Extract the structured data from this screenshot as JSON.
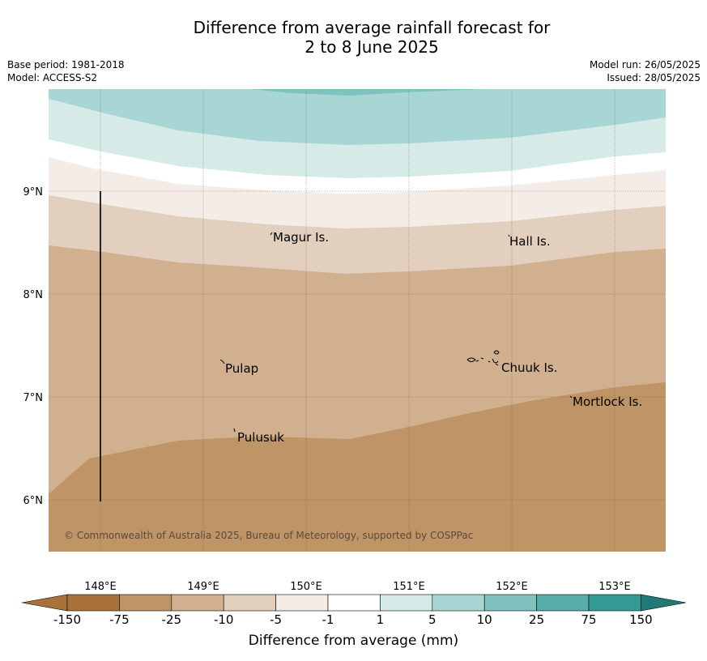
{
  "title_line1": "Difference from average rainfall forecast for",
  "title_line2": "2 to 8 June 2025",
  "base_period": "Base period: 1981-2018",
  "model": "Model: ACCESS-S2",
  "model_run": "Model run: 26/05/2025",
  "issued": "Issued: 28/05/2025",
  "copyright": "© Commonwealth of Australia 2025, Bureau of Meteorology, supported by COSPPac",
  "lat_labels": [
    "9°N",
    "8°N",
    "7°N",
    "6°N"
  ],
  "lon_labels": [
    "148°E",
    "149°E",
    "150°E",
    "151°E",
    "152°E",
    "153°E"
  ],
  "islands": [
    {
      "name": "Magur Is."
    },
    {
      "name": "Hall Is."
    },
    {
      "name": "Pulap"
    },
    {
      "name": "Chuuk Is."
    },
    {
      "name": "Mortlock Is."
    },
    {
      "name": "Pulusuk"
    }
  ],
  "colorbar": {
    "title": "Difference from average (mm)",
    "ticks": [
      "-150",
      "-75",
      "-25",
      "-10",
      "-5",
      "-1",
      "1",
      "5",
      "10",
      "25",
      "75",
      "150"
    ],
    "colors": [
      "#a8723a",
      "#bf9466",
      "#d1b08f",
      "#e2cfbd",
      "#f4ede7",
      "#ffffff",
      "#d6eae8",
      "#a8d6d4",
      "#80c2bf",
      "#58adaa",
      "#339a96",
      "#1f7a76"
    ]
  }
}
